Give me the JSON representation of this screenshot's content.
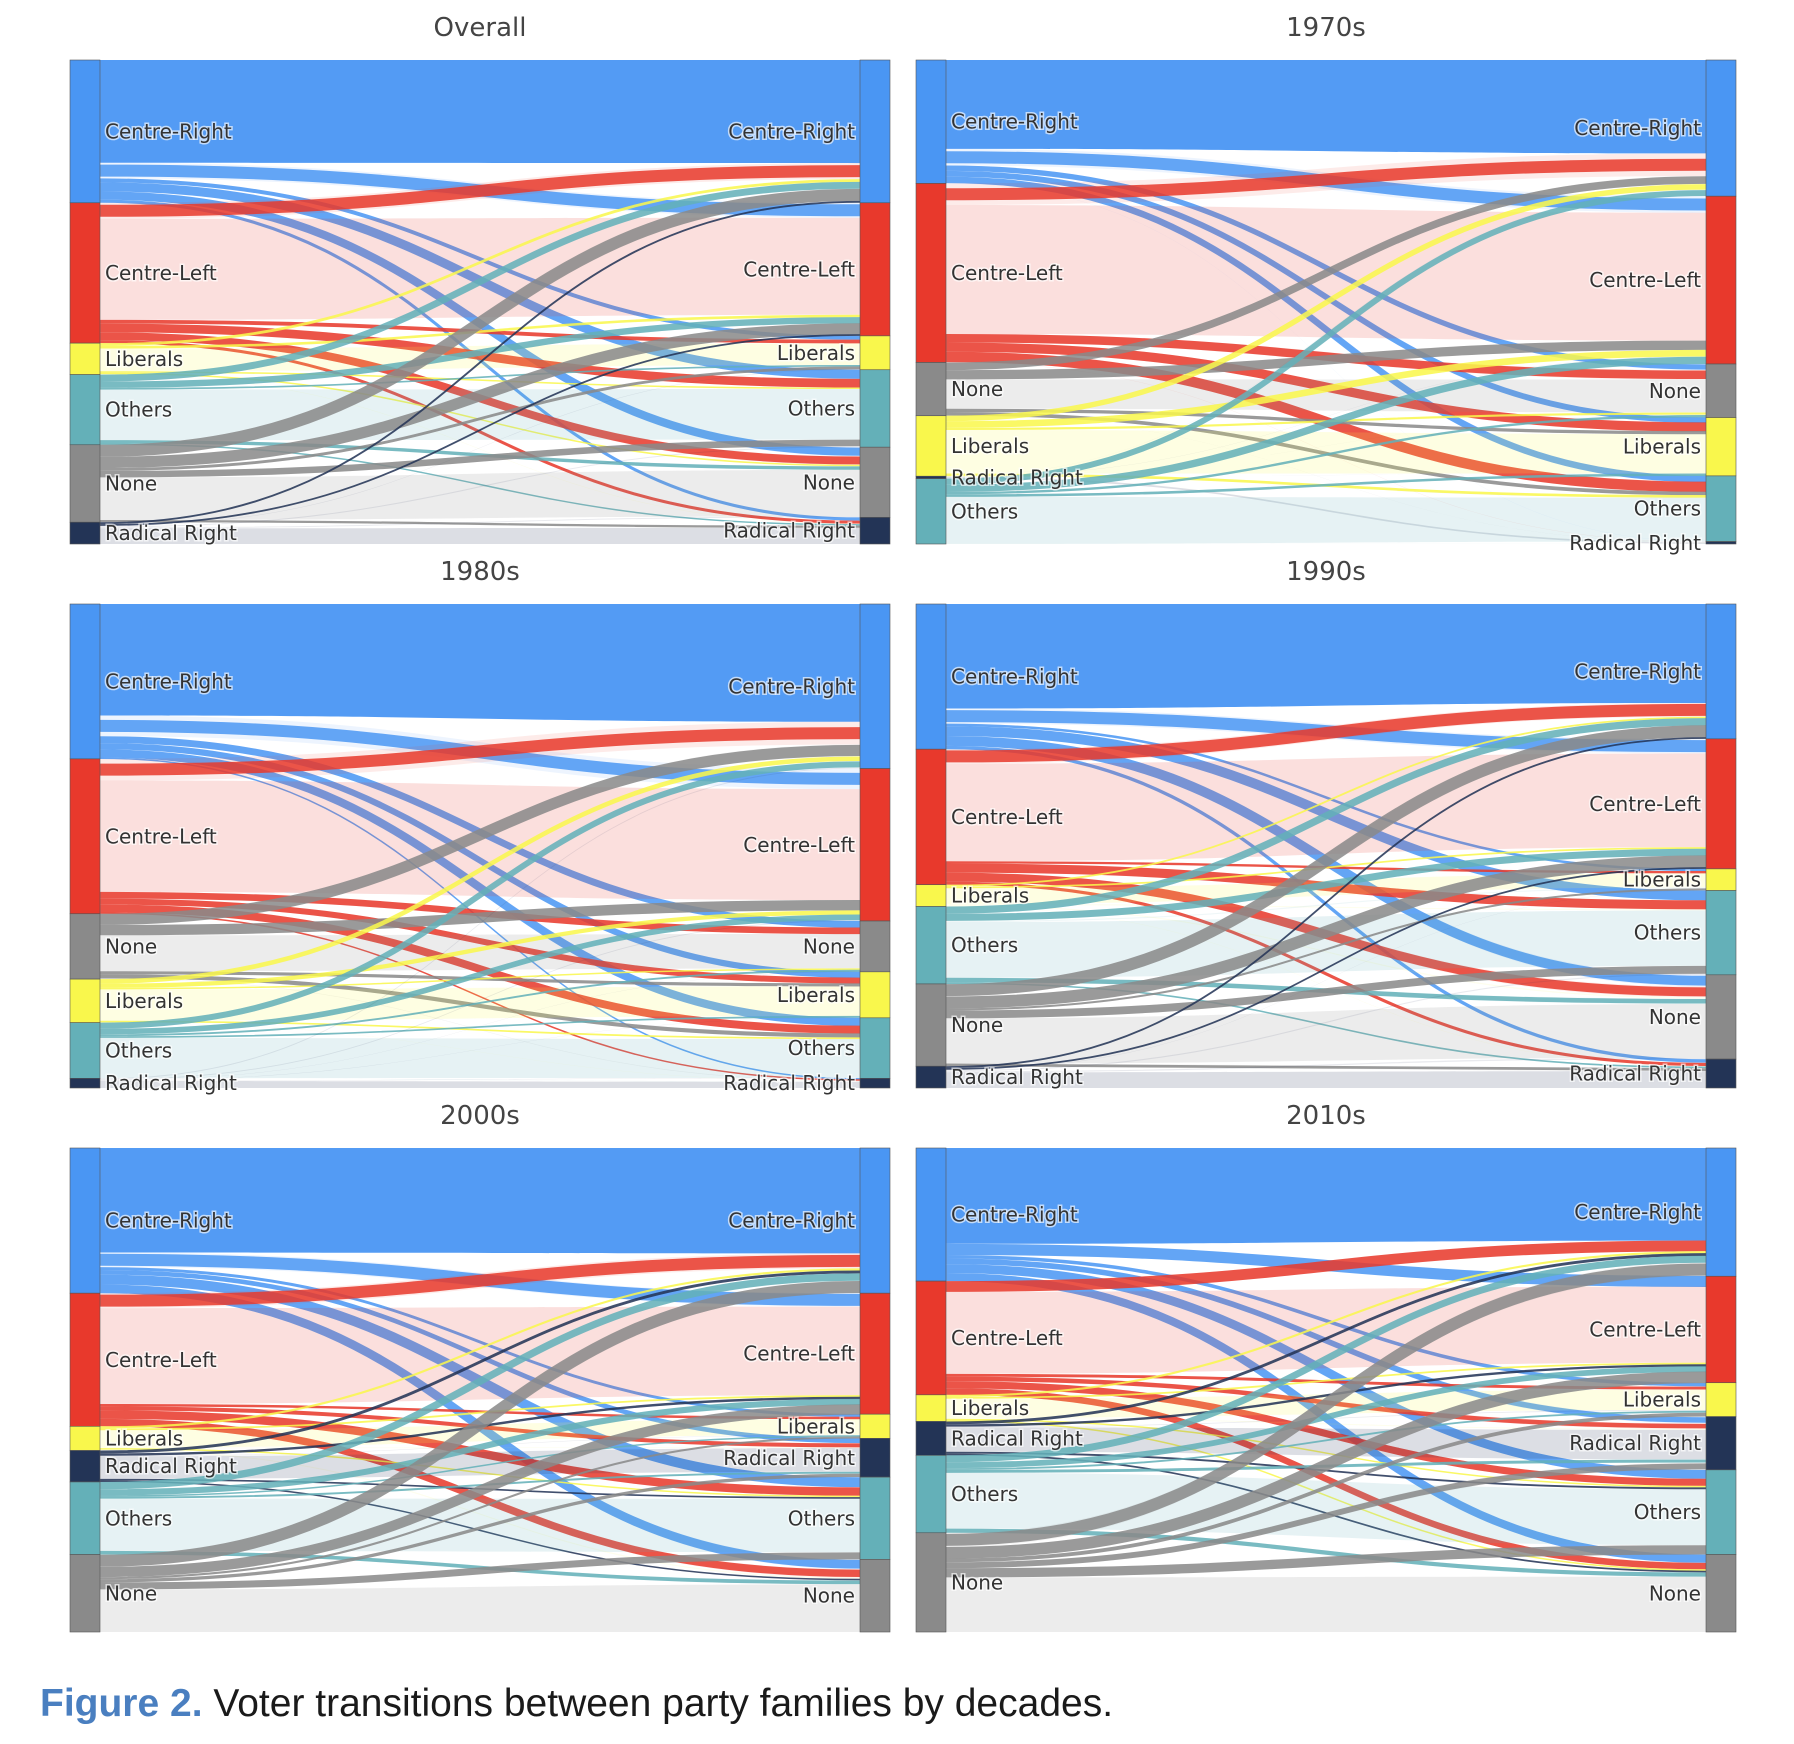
{
  "colors": {
    "Centre-Right": "#4a96f3",
    "Centre-Left": "#e8392c",
    "Liberals": "#f9f74c",
    "Others": "#64b0b8",
    "None": "#8a8a8a",
    "Radical Right": "#233456"
  },
  "caption": {
    "label": "Figure 2.",
    "text": " Voter transitions between party families by decades."
  },
  "chart_data": [
    {
      "type": "sankey",
      "title": "Overall",
      "left_nodes": [
        {
          "name": "Centre-Right",
          "value": 29.5
        },
        {
          "name": "Centre-Left",
          "value": 29.0
        },
        {
          "name": "Liberals",
          "value": 6.5
        },
        {
          "name": "Others",
          "value": 14.5
        },
        {
          "name": "None",
          "value": 16.0
        },
        {
          "name": "Radical Right",
          "value": 4.5
        }
      ],
      "right_nodes": [
        {
          "name": "Centre-Right",
          "value": 29.5
        },
        {
          "name": "Centre-Left",
          "value": 27.5
        },
        {
          "name": "Liberals",
          "value": 7.0
        },
        {
          "name": "Others",
          "value": 16.0
        },
        {
          "name": "None",
          "value": 14.5
        },
        {
          "name": "Radical Right",
          "value": 5.5
        }
      ]
    },
    {
      "type": "sankey",
      "title": "1970s",
      "left_nodes": [
        {
          "name": "Centre-Right",
          "value": 25.5
        },
        {
          "name": "Centre-Left",
          "value": 37.0
        },
        {
          "name": "None",
          "value": 11.0
        },
        {
          "name": "Liberals",
          "value": 12.5
        },
        {
          "name": "Radical Right",
          "value": 0.5
        },
        {
          "name": "Others",
          "value": 13.5
        }
      ],
      "right_nodes": [
        {
          "name": "Centre-Right",
          "value": 28.0
        },
        {
          "name": "Centre-Left",
          "value": 34.5
        },
        {
          "name": "None",
          "value": 11.0
        },
        {
          "name": "Liberals",
          "value": 12.0
        },
        {
          "name": "Others",
          "value": 13.5
        },
        {
          "name": "Radical Right",
          "value": 0.5
        }
      ]
    },
    {
      "type": "sankey",
      "title": "1980s",
      "left_nodes": [
        {
          "name": "Centre-Right",
          "value": 32.0
        },
        {
          "name": "Centre-Left",
          "value": 32.0
        },
        {
          "name": "None",
          "value": 13.5
        },
        {
          "name": "Liberals",
          "value": 9.0
        },
        {
          "name": "Others",
          "value": 11.5
        },
        {
          "name": "Radical Right",
          "value": 2.0
        }
      ],
      "right_nodes": [
        {
          "name": "Centre-Right",
          "value": 34.0
        },
        {
          "name": "Centre-Left",
          "value": 31.5
        },
        {
          "name": "None",
          "value": 10.5
        },
        {
          "name": "Liberals",
          "value": 9.5
        },
        {
          "name": "Others",
          "value": 12.5
        },
        {
          "name": "Radical Right",
          "value": 2.0
        }
      ]
    },
    {
      "type": "sankey",
      "title": "1990s",
      "left_nodes": [
        {
          "name": "Centre-Right",
          "value": 30.0
        },
        {
          "name": "Centre-Left",
          "value": 28.0
        },
        {
          "name": "Liberals",
          "value": 4.5
        },
        {
          "name": "Others",
          "value": 16.0
        },
        {
          "name": "None",
          "value": 17.0
        },
        {
          "name": "Radical Right",
          "value": 4.5
        }
      ],
      "right_nodes": [
        {
          "name": "Centre-Right",
          "value": 28.0
        },
        {
          "name": "Centre-Left",
          "value": 27.0
        },
        {
          "name": "Liberals",
          "value": 4.5
        },
        {
          "name": "Others",
          "value": 17.5
        },
        {
          "name": "None",
          "value": 17.5
        },
        {
          "name": "Radical Right",
          "value": 6.0
        }
      ]
    },
    {
      "type": "sankey",
      "title": "2000s",
      "left_nodes": [
        {
          "name": "Centre-Right",
          "value": 30.0
        },
        {
          "name": "Centre-Left",
          "value": 27.5
        },
        {
          "name": "Liberals",
          "value": 5.0
        },
        {
          "name": "Radical Right",
          "value": 6.5
        },
        {
          "name": "Others",
          "value": 15.0
        },
        {
          "name": "None",
          "value": 16.0
        }
      ],
      "right_nodes": [
        {
          "name": "Centre-Right",
          "value": 30.0
        },
        {
          "name": "Centre-Left",
          "value": 25.0
        },
        {
          "name": "Liberals",
          "value": 5.0
        },
        {
          "name": "Radical Right",
          "value": 8.0
        },
        {
          "name": "Others",
          "value": 17.0
        },
        {
          "name": "None",
          "value": 15.0
        }
      ]
    },
    {
      "type": "sankey",
      "title": "2010s",
      "left_nodes": [
        {
          "name": "Centre-Right",
          "value": 27.5
        },
        {
          "name": "Centre-Left",
          "value": 23.5
        },
        {
          "name": "Liberals",
          "value": 5.5
        },
        {
          "name": "Radical Right",
          "value": 7.0
        },
        {
          "name": "Others",
          "value": 16.0
        },
        {
          "name": "None",
          "value": 20.5
        }
      ],
      "right_nodes": [
        {
          "name": "Centre-Right",
          "value": 26.5
        },
        {
          "name": "Centre-Left",
          "value": 22.0
        },
        {
          "name": "Liberals",
          "value": 7.0
        },
        {
          "name": "Radical Right",
          "value": 11.0
        },
        {
          "name": "Others",
          "value": 17.5
        },
        {
          "name": "None",
          "value": 16.0
        }
      ]
    }
  ]
}
